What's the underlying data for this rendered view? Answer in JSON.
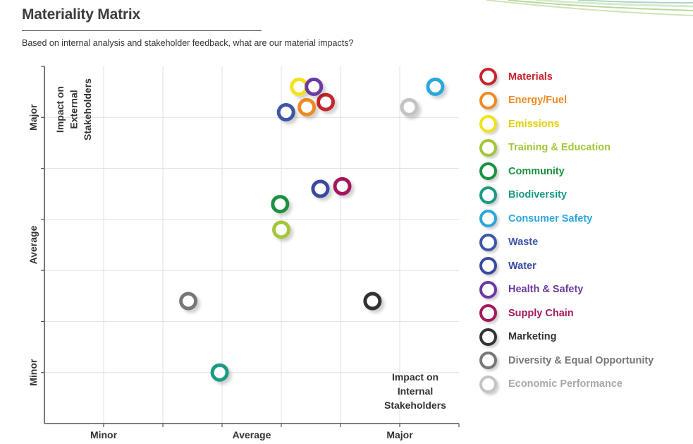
{
  "page": {
    "title": "Materiality Matrix",
    "subtitle": "Based on internal analysis and stakeholder feedback, what are our material impacts?"
  },
  "chart_data": {
    "type": "scatter",
    "title": "Materiality Matrix",
    "xlabel": "Impact on Internal Stakeholders",
    "ylabel": "Impact on External Stakeholders",
    "x_tick_labels": [
      "Minor",
      "Average",
      "Major"
    ],
    "y_tick_labels": [
      "Minor",
      "Average",
      "Major"
    ],
    "xlim": [
      0,
      7
    ],
    "ylim": [
      0,
      7
    ],
    "grid": true,
    "legend_position": "right",
    "series": [
      {
        "name": "Materials",
        "color": "#c4262e",
        "x": 4.75,
        "y": 6.3
      },
      {
        "name": "Energy/Fuel",
        "color": "#f08a24",
        "x": 4.43,
        "y": 6.2
      },
      {
        "name": "Emissions",
        "color": "#f2e21a",
        "x": 4.3,
        "y": 6.6
      },
      {
        "name": "Training & Education",
        "color": "#a4c639",
        "x": 4.0,
        "y": 3.8
      },
      {
        "name": "Community",
        "color": "#1a9140",
        "x": 3.98,
        "y": 4.3
      },
      {
        "name": "Biodiversity",
        "color": "#1b9a82",
        "x": 2.96,
        "y": 1.0
      },
      {
        "name": "Consumer Safety",
        "color": "#2aa7dd",
        "x": 6.6,
        "y": 6.6
      },
      {
        "name": "Waste",
        "color": "#3d56a6",
        "x": 4.08,
        "y": 6.1
      },
      {
        "name": "Water",
        "color": "#3b4aa0",
        "x": 4.66,
        "y": 4.6
      },
      {
        "name": "Health & Safety",
        "color": "#6b3aa0",
        "x": 4.55,
        "y": 6.6
      },
      {
        "name": "Supply Chain",
        "color": "#a3195b",
        "x": 5.03,
        "y": 4.65
      },
      {
        "name": "Marketing",
        "color": "#333333",
        "x": 5.54,
        "y": 2.4
      },
      {
        "name": "Diversity & Equal Opportunity",
        "color": "#777777",
        "x": 2.43,
        "y": 2.4
      },
      {
        "name": "Economic Performance",
        "color": "#c4c4c4",
        "x": 6.16,
        "y": 6.2
      }
    ]
  }
}
